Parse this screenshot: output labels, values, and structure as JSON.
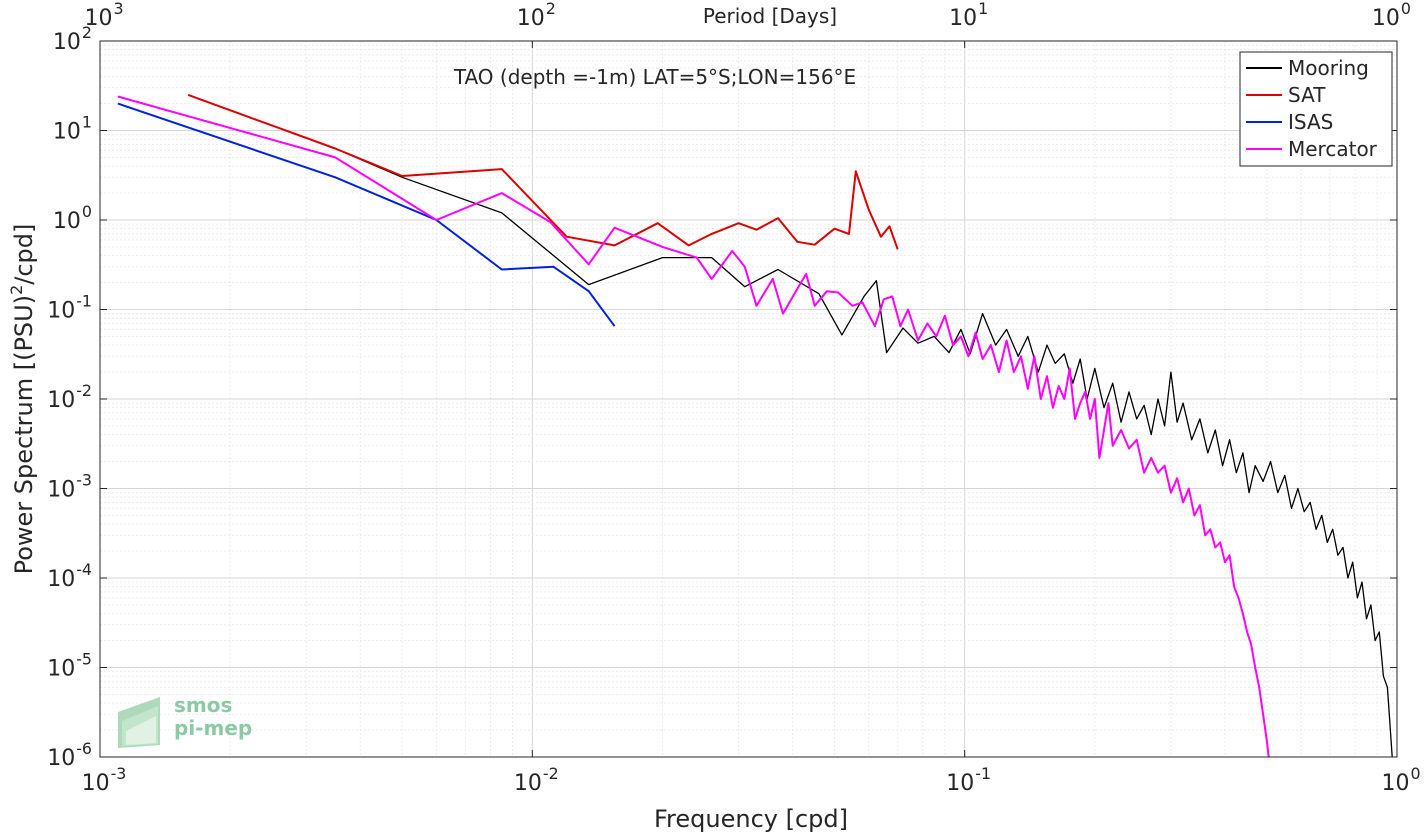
{
  "chart_data": {
    "type": "line",
    "title": "TAO (depth =-1m) LAT=5°S;LON=156°E",
    "xlabel": "Frequency [cpd]",
    "ylabel": "Power Spectrum [(PSU)²/cpd]",
    "top_axis_label": "Period [Days]",
    "x_scale": "log",
    "y_scale": "log",
    "xlim": [
      0.001,
      1
    ],
    "ylim": [
      1e-06,
      100
    ],
    "grid": true,
    "legend_position": "top-right",
    "x_ticks": [
      {
        "base": "10",
        "exp": "-3"
      },
      {
        "base": "10",
        "exp": "-2"
      },
      {
        "base": "10",
        "exp": "-1"
      },
      {
        "base": "10",
        "exp": "0"
      }
    ],
    "y_ticks": [
      {
        "base": "10",
        "exp": "-6"
      },
      {
        "base": "10",
        "exp": "-5"
      },
      {
        "base": "10",
        "exp": "-4"
      },
      {
        "base": "10",
        "exp": "-3"
      },
      {
        "base": "10",
        "exp": "-2"
      },
      {
        "base": "10",
        "exp": "-1"
      },
      {
        "base": "10",
        "exp": "0"
      },
      {
        "base": "10",
        "exp": "1"
      },
      {
        "base": "10",
        "exp": "2"
      }
    ],
    "top_ticks": [
      {
        "base": "10",
        "exp": "3"
      },
      {
        "base": "10",
        "exp": "2"
      },
      {
        "base": "10",
        "exp": "1"
      },
      {
        "base": "10",
        "exp": "0"
      }
    ],
    "series": [
      {
        "name": "Mooring",
        "color": "#000000",
        "points": [
          [
            0.0016,
            25
          ],
          [
            0.0035,
            6.3
          ],
          [
            0.005,
            3.0
          ],
          [
            0.0085,
            1.2
          ],
          [
            0.0135,
            0.19
          ],
          [
            0.02,
            0.38
          ],
          [
            0.026,
            0.38
          ],
          [
            0.031,
            0.18
          ],
          [
            0.037,
            0.28
          ],
          [
            0.046,
            0.15
          ],
          [
            0.052,
            0.052
          ],
          [
            0.0585,
            0.14
          ],
          [
            0.0625,
            0.21
          ],
          [
            0.066,
            0.033
          ],
          [
            0.072,
            0.062
          ],
          [
            0.078,
            0.042
          ],
          [
            0.085,
            0.05
          ],
          [
            0.092,
            0.033
          ],
          [
            0.098,
            0.06
          ],
          [
            0.103,
            0.032
          ],
          [
            0.11,
            0.09
          ],
          [
            0.118,
            0.04
          ],
          [
            0.125,
            0.06
          ],
          [
            0.133,
            0.03
          ],
          [
            0.14,
            0.05
          ],
          [
            0.148,
            0.02
          ],
          [
            0.155,
            0.04
          ],
          [
            0.162,
            0.025
          ],
          [
            0.17,
            0.032
          ],
          [
            0.178,
            0.015
          ],
          [
            0.185,
            0.028
          ],
          [
            0.192,
            0.01
          ],
          [
            0.2,
            0.022
          ],
          [
            0.21,
            0.008
          ],
          [
            0.22,
            0.015
          ],
          [
            0.23,
            0.0055
          ],
          [
            0.24,
            0.012
          ],
          [
            0.25,
            0.006
          ],
          [
            0.26,
            0.0085
          ],
          [
            0.27,
            0.004
          ],
          [
            0.28,
            0.01
          ],
          [
            0.29,
            0.005
          ],
          [
            0.3,
            0.02
          ],
          [
            0.31,
            0.0055
          ],
          [
            0.32,
            0.009
          ],
          [
            0.335,
            0.0035
          ],
          [
            0.35,
            0.006
          ],
          [
            0.365,
            0.0025
          ],
          [
            0.38,
            0.0045
          ],
          [
            0.395,
            0.0018
          ],
          [
            0.41,
            0.0035
          ],
          [
            0.425,
            0.0015
          ],
          [
            0.44,
            0.0025
          ],
          [
            0.455,
            0.0009
          ],
          [
            0.47,
            0.0018
          ],
          [
            0.49,
            0.0012
          ],
          [
            0.51,
            0.002
          ],
          [
            0.53,
            0.0009
          ],
          [
            0.55,
            0.0014
          ],
          [
            0.57,
            0.0006
          ],
          [
            0.59,
            0.001
          ],
          [
            0.61,
            0.00055
          ],
          [
            0.63,
            0.0007
          ],
          [
            0.65,
            0.00035
          ],
          [
            0.67,
            0.0005
          ],
          [
            0.69,
            0.00025
          ],
          [
            0.71,
            0.00035
          ],
          [
            0.73,
            0.00018
          ],
          [
            0.75,
            0.00022
          ],
          [
            0.77,
            0.0001
          ],
          [
            0.79,
            0.00015
          ],
          [
            0.81,
            6e-05
          ],
          [
            0.83,
            9e-05
          ],
          [
            0.85,
            3.5e-05
          ],
          [
            0.87,
            5e-05
          ],
          [
            0.89,
            2e-05
          ],
          [
            0.91,
            2.5e-05
          ],
          [
            0.93,
            8e-06
          ],
          [
            0.95,
            6e-06
          ],
          [
            0.96,
            3e-06
          ],
          [
            0.975,
            1e-06
          ]
        ]
      },
      {
        "name": "SAT",
        "color": "#dd0000",
        "points": [
          [
            0.0016,
            25
          ],
          [
            0.0035,
            6.3
          ],
          [
            0.005,
            3.1
          ],
          [
            0.0085,
            3.7
          ],
          [
            0.012,
            0.65
          ],
          [
            0.0155,
            0.52
          ],
          [
            0.0195,
            0.92
          ],
          [
            0.023,
            0.52
          ],
          [
            0.026,
            0.7
          ],
          [
            0.03,
            0.92
          ],
          [
            0.033,
            0.78
          ],
          [
            0.037,
            1.05
          ],
          [
            0.041,
            0.57
          ],
          [
            0.045,
            0.53
          ],
          [
            0.05,
            0.8
          ],
          [
            0.054,
            0.7
          ],
          [
            0.056,
            3.5
          ],
          [
            0.06,
            1.3
          ],
          [
            0.064,
            0.65
          ],
          [
            0.067,
            0.85
          ],
          [
            0.07,
            0.47
          ]
        ]
      },
      {
        "name": "ISAS",
        "color": "#0022dd",
        "points": [
          [
            0.0011,
            20
          ],
          [
            0.0035,
            3.0
          ],
          [
            0.006,
            1.0
          ],
          [
            0.0085,
            0.28
          ],
          [
            0.0112,
            0.3
          ],
          [
            0.0135,
            0.16
          ],
          [
            0.0155,
            0.065
          ]
        ]
      },
      {
        "name": "Mercator",
        "color": "#ff00ff",
        "points": [
          [
            0.0011,
            24
          ],
          [
            0.0035,
            5.0
          ],
          [
            0.006,
            1.0
          ],
          [
            0.0085,
            2.0
          ],
          [
            0.011,
            0.95
          ],
          [
            0.0135,
            0.32
          ],
          [
            0.0155,
            0.82
          ],
          [
            0.02,
            0.5
          ],
          [
            0.024,
            0.38
          ],
          [
            0.026,
            0.22
          ],
          [
            0.029,
            0.45
          ],
          [
            0.031,
            0.3
          ],
          [
            0.033,
            0.11
          ],
          [
            0.036,
            0.22
          ],
          [
            0.038,
            0.09
          ],
          [
            0.041,
            0.17
          ],
          [
            0.043,
            0.25
          ],
          [
            0.045,
            0.11
          ],
          [
            0.048,
            0.16
          ],
          [
            0.051,
            0.155
          ],
          [
            0.055,
            0.11
          ],
          [
            0.058,
            0.12
          ],
          [
            0.062,
            0.065
          ],
          [
            0.065,
            0.13
          ],
          [
            0.068,
            0.14
          ],
          [
            0.071,
            0.065
          ],
          [
            0.074,
            0.1
          ],
          [
            0.078,
            0.045
          ],
          [
            0.082,
            0.07
          ],
          [
            0.086,
            0.05
          ],
          [
            0.09,
            0.085
          ],
          [
            0.094,
            0.04
          ],
          [
            0.098,
            0.05
          ],
          [
            0.102,
            0.03
          ],
          [
            0.106,
            0.055
          ],
          [
            0.11,
            0.028
          ],
          [
            0.115,
            0.04
          ],
          [
            0.12,
            0.02
          ],
          [
            0.125,
            0.045
          ],
          [
            0.13,
            0.02
          ],
          [
            0.135,
            0.03
          ],
          [
            0.14,
            0.013
          ],
          [
            0.145,
            0.03
          ],
          [
            0.15,
            0.01
          ],
          [
            0.155,
            0.018
          ],
          [
            0.16,
            0.008
          ],
          [
            0.165,
            0.014
          ],
          [
            0.17,
            0.01
          ],
          [
            0.175,
            0.022
          ],
          [
            0.18,
            0.006
          ],
          [
            0.185,
            0.009
          ],
          [
            0.19,
            0.012
          ],
          [
            0.195,
            0.006
          ],
          [
            0.2,
            0.01
          ],
          [
            0.205,
            0.0022
          ],
          [
            0.21,
            0.0045
          ],
          [
            0.215,
            0.009
          ],
          [
            0.22,
            0.003
          ],
          [
            0.23,
            0.0045
          ],
          [
            0.24,
            0.0028
          ],
          [
            0.25,
            0.0035
          ],
          [
            0.26,
            0.0015
          ],
          [
            0.27,
            0.0022
          ],
          [
            0.28,
            0.0015
          ],
          [
            0.29,
            0.0018
          ],
          [
            0.3,
            0.0009
          ],
          [
            0.31,
            0.0013
          ],
          [
            0.32,
            0.0007
          ],
          [
            0.33,
            0.001
          ],
          [
            0.34,
            0.0005
          ],
          [
            0.35,
            0.00065
          ],
          [
            0.36,
            0.0003
          ],
          [
            0.37,
            0.00035
          ],
          [
            0.38,
            0.00022
          ],
          [
            0.39,
            0.00025
          ],
          [
            0.4,
            0.00015
          ],
          [
            0.41,
            0.00018
          ],
          [
            0.42,
            8e-05
          ],
          [
            0.43,
            6e-05
          ],
          [
            0.44,
            4e-05
          ],
          [
            0.45,
            2.5e-05
          ],
          [
            0.46,
            1.8e-05
          ],
          [
            0.47,
            1e-05
          ],
          [
            0.48,
            6e-06
          ],
          [
            0.49,
            3e-06
          ],
          [
            0.5,
            1.5e-06
          ],
          [
            0.505,
            1e-06
          ]
        ]
      }
    ],
    "logo": {
      "line1": "smos",
      "line2": "pi-mep"
    }
  }
}
